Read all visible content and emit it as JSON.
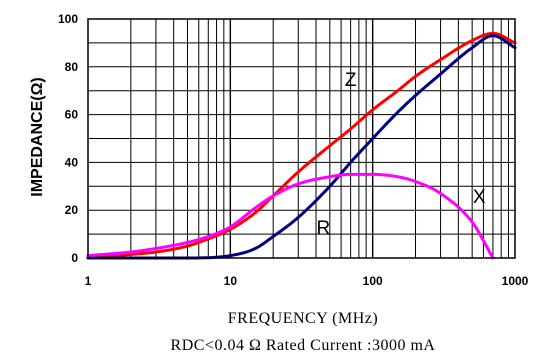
{
  "chart_data": {
    "type": "line",
    "title": "",
    "xlabel": "FREQUENCY (MHz)",
    "ylabel": "IMPEDANCE(Ω)",
    "caption": "RDC<0.04 Ω Rated Current :3000 mA",
    "x_scale": "log",
    "xlim": [
      1,
      1000
    ],
    "ylim": [
      0,
      100
    ],
    "x_ticks": [
      "1",
      "10",
      "100",
      "1000"
    ],
    "y_ticks": [
      "0",
      "20",
      "40",
      "60",
      "80",
      "100"
    ],
    "grid": true,
    "series": [
      {
        "name": "Z",
        "color": "#ff0000",
        "x": [
          1,
          2,
          3,
          5,
          7,
          10,
          15,
          20,
          30,
          50,
          70,
          100,
          150,
          200,
          300,
          500,
          700,
          1000
        ],
        "y": [
          0,
          1.5,
          2.5,
          5,
          8,
          12,
          19,
          26,
          36,
          47,
          54,
          62,
          70,
          76,
          83,
          91,
          94,
          90
        ]
      },
      {
        "name": "R",
        "color": "#000080",
        "x": [
          1,
          5,
          10,
          15,
          20,
          30,
          50,
          70,
          100,
          150,
          200,
          300,
          500,
          700,
          1000
        ],
        "y": [
          0,
          0,
          1,
          4,
          9,
          17,
          30,
          40,
          50,
          61,
          68,
          77,
          88,
          93,
          88
        ]
      },
      {
        "name": "X",
        "color": "#ff00ff",
        "x": [
          1,
          2,
          3,
          5,
          7,
          10,
          15,
          20,
          30,
          50,
          70,
          100,
          150,
          200,
          300,
          500,
          700
        ],
        "y": [
          1,
          2.5,
          4,
          6.5,
          9,
          13,
          21,
          26,
          31,
          34,
          35,
          35,
          34,
          32,
          27,
          15,
          0
        ]
      }
    ]
  }
}
